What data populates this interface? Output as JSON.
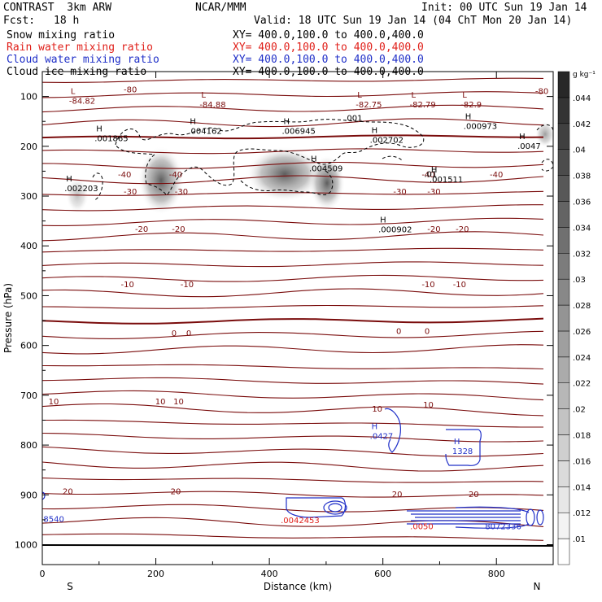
{
  "header": {
    "title_left": "CONTRAST  3km ARW",
    "title_center": "NCAR/MMM",
    "init": "Init: 00 UTC Sun 19 Jan 14",
    "fcst_label": "Fcst:",
    "fcst_value": "18 h",
    "valid": "Valid: 18 UTC Sun 19 Jan 14 (04 ChT Mon 20 Jan 14)",
    "fields": [
      {
        "name": "Snow mixing ratio",
        "color": "#000000",
        "xy": "XY= 400.0,100.0 to 400.0,400.0"
      },
      {
        "name": "Rain water mixing ratio",
        "color": "#e0201a",
        "xy": "XY= 400.0,100.0 to 400.0,400.0"
      },
      {
        "name": "Cloud water mixing ratio",
        "color": "#2030c8",
        "xy": "XY= 400.0,100.0 to 400.0,400.0"
      },
      {
        "name": "Cloud ice mixing ratio",
        "color": "#000000",
        "xy": "XY= 400.0,100.0 to 400.0,400.0"
      }
    ]
  },
  "chart_data": {
    "type": "heatmap",
    "xlabel": "Distance (km)",
    "ylabel": "Pressure (hPa)",
    "xlim": [
      0,
      900
    ],
    "ylim": [
      1040,
      50
    ],
    "x_ticks": [
      0,
      200,
      400,
      600,
      800
    ],
    "y_ticks": [
      100,
      200,
      300,
      400,
      500,
      600,
      700,
      800,
      900,
      1000
    ],
    "end_labels": {
      "left": "S",
      "right": "N"
    },
    "colorbar": {
      "unit": "g kg⁻¹",
      "ticks": [
        ".01",
        ".012",
        ".014",
        ".016",
        ".018",
        ".02",
        ".022",
        ".024",
        ".026",
        ".028",
        ".03",
        ".032",
        ".034",
        ".036",
        ".038",
        ".04",
        ".042",
        ".044"
      ]
    },
    "temperature_contours": {
      "color": "#7a0c0c",
      "labels": [
        {
          "text": "-80",
          "x": 155,
          "p": 85
        },
        {
          "text": "-80",
          "x": 880,
          "p": 88
        },
        {
          "text": "-40",
          "x": 145,
          "p": 256
        },
        {
          "text": "-40",
          "x": 235,
          "p": 256
        },
        {
          "text": "-40",
          "x": 680,
          "p": 256
        },
        {
          "text": "-40",
          "x": 800,
          "p": 256
        },
        {
          "text": "-30",
          "x": 155,
          "p": 290
        },
        {
          "text": "-30",
          "x": 245,
          "p": 290
        },
        {
          "text": "-30",
          "x": 630,
          "p": 290
        },
        {
          "text": "-30",
          "x": 690,
          "p": 290
        },
        {
          "text": "-20",
          "x": 175,
          "p": 365
        },
        {
          "text": "-20",
          "x": 240,
          "p": 365
        },
        {
          "text": "-20",
          "x": 690,
          "p": 365
        },
        {
          "text": "-20",
          "x": 740,
          "p": 365
        },
        {
          "text": "-10",
          "x": 150,
          "p": 476
        },
        {
          "text": "-10",
          "x": 255,
          "p": 476
        },
        {
          "text": "-10",
          "x": 680,
          "p": 476
        },
        {
          "text": "-10",
          "x": 735,
          "p": 476
        },
        {
          "text": "0",
          "x": 232,
          "p": 574
        },
        {
          "text": "0",
          "x": 258,
          "p": 574
        },
        {
          "text": "0",
          "x": 628,
          "p": 570
        },
        {
          "text": "0",
          "x": 678,
          "p": 570
        },
        {
          "text": "10",
          "x": 20,
          "p": 712
        },
        {
          "text": "10",
          "x": 208,
          "p": 712
        },
        {
          "text": "10",
          "x": 240,
          "p": 712
        },
        {
          "text": "10",
          "x": 590,
          "p": 726
        },
        {
          "text": "10",
          "x": 680,
          "p": 718
        },
        {
          "text": "20",
          "x": 45,
          "p": 892
        },
        {
          "text": "20",
          "x": 235,
          "p": 892
        },
        {
          "text": "20",
          "x": 625,
          "p": 898
        },
        {
          "text": "20",
          "x": 760,
          "p": 898
        }
      ]
    },
    "extrema": [
      {
        "type": "L",
        "value": "-84.82",
        "x": 70,
        "p": 105,
        "color": "#7a0c0c"
      },
      {
        "type": "L",
        "value": "-84.88",
        "x": 300,
        "p": 112,
        "color": "#7a0c0c"
      },
      {
        "type": "L",
        "value": "-82.75",
        "x": 575,
        "p": 112,
        "color": "#7a0c0c"
      },
      {
        "type": "L",
        "value": "-82.79",
        "x": 670,
        "p": 112,
        "color": "#7a0c0c"
      },
      {
        "type": "L",
        "value": "-82.9",
        "x": 760,
        "p": 112,
        "color": "#7a0c0c"
      },
      {
        "type": "H",
        "value": ".001865",
        "x": 115,
        "p": 180,
        "color": "#000000"
      },
      {
        "type": "H",
        "value": ".004162",
        "x": 280,
        "p": 165,
        "color": "#000000"
      },
      {
        "type": "H",
        "value": ".006945",
        "x": 445,
        "p": 165,
        "color": "#000000"
      },
      {
        "type": "H",
        "value": ".002702",
        "x": 600,
        "p": 183,
        "color": "#000000"
      },
      {
        "type": "H",
        "value": ".000973",
        "x": 765,
        "p": 155,
        "color": "#000000"
      },
      {
        "type": "H",
        "value": ".0047",
        "x": 860,
        "p": 195,
        "color": "#000000"
      },
      {
        "type": "H",
        "value": ".004509",
        "x": 493,
        "p": 240,
        "color": "#000000"
      },
      {
        "type": "H",
        "value": ".001511",
        "x": 705,
        "p": 262,
        "color": "#000000"
      },
      {
        "type": "H",
        "value": ".002203",
        "x": 62,
        "p": 280,
        "color": "#000000"
      },
      {
        "type": "H",
        "value": ".000902",
        "x": 615,
        "p": 363,
        "color": "#000000"
      },
      {
        "type": "H",
        "value": ".0427",
        "x": 600,
        "p": 778,
        "color": "#2030c8"
      },
      {
        "type": "H",
        "value": "1328",
        "x": 745,
        "p": 808,
        "color": "#2030c8"
      }
    ],
    "contour_value_labels": [
      {
        "text": ".001",
        "x": 548,
        "p": 142,
        "color": "#000000"
      },
      {
        "text": ".01",
        "x": 684,
        "p": 255,
        "color": "#000000"
      }
    ],
    "surface_labels": [
      {
        "text": "8540",
        "x": 2,
        "p": 948,
        "color": "#2030c8"
      },
      {
        "text": ".0042453",
        "x": 420,
        "p": 950,
        "color": "#e0201a"
      },
      {
        "text": ".0050",
        "x": 648,
        "p": 962,
        "color": "#e0201a"
      },
      {
        "text": "8072336",
        "x": 780,
        "p": 962,
        "color": "#2030c8"
      }
    ]
  }
}
